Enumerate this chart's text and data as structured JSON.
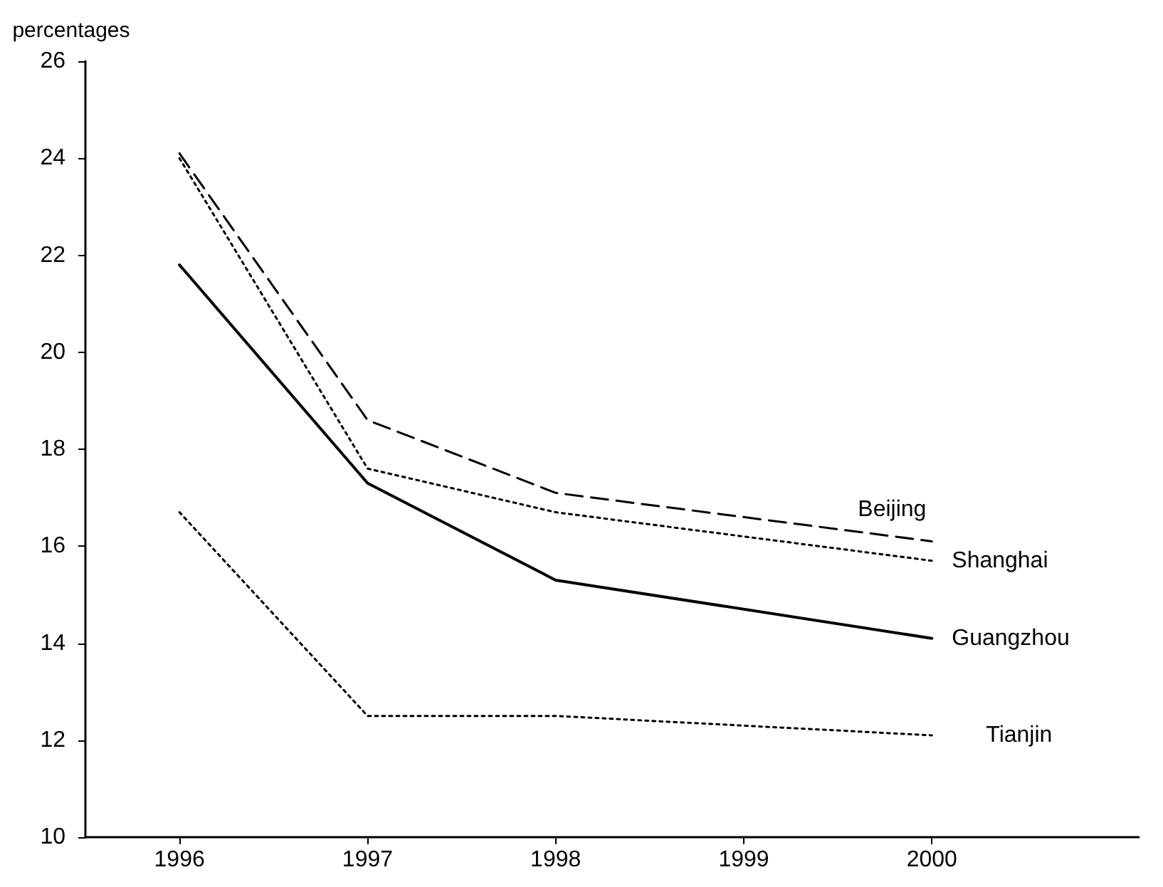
{
  "chart_data": {
    "type": "line",
    "ylabel": "percentages",
    "x": [
      1996,
      1997,
      1998,
      2000
    ],
    "xlim": [
      1995.5,
      2001.1
    ],
    "xticks": [
      1996,
      1997,
      1998,
      1999,
      2000
    ],
    "ylim": [
      10,
      26
    ],
    "yticks": [
      10,
      12,
      14,
      16,
      18,
      20,
      22,
      24,
      26
    ],
    "grid": false,
    "legend": false,
    "marker": "none",
    "series": [
      {
        "name": "Beijing",
        "color": "#000000",
        "line_style": "dashed",
        "values": [
          24.1,
          18.6,
          17.1,
          16.1
        ]
      },
      {
        "name": "Shanghai",
        "color": "#000000",
        "line_style": "dotted",
        "values": [
          24.0,
          17.6,
          16.7,
          15.7
        ]
      },
      {
        "name": "Guangzhou",
        "color": "#000000",
        "line_style": "solid",
        "values": [
          21.8,
          17.3,
          15.3,
          14.1
        ]
      },
      {
        "name": "Tianjin",
        "color": "#000000",
        "line_style": "dotted",
        "values": [
          16.7,
          12.5,
          12.5,
          12.1
        ]
      }
    ]
  }
}
